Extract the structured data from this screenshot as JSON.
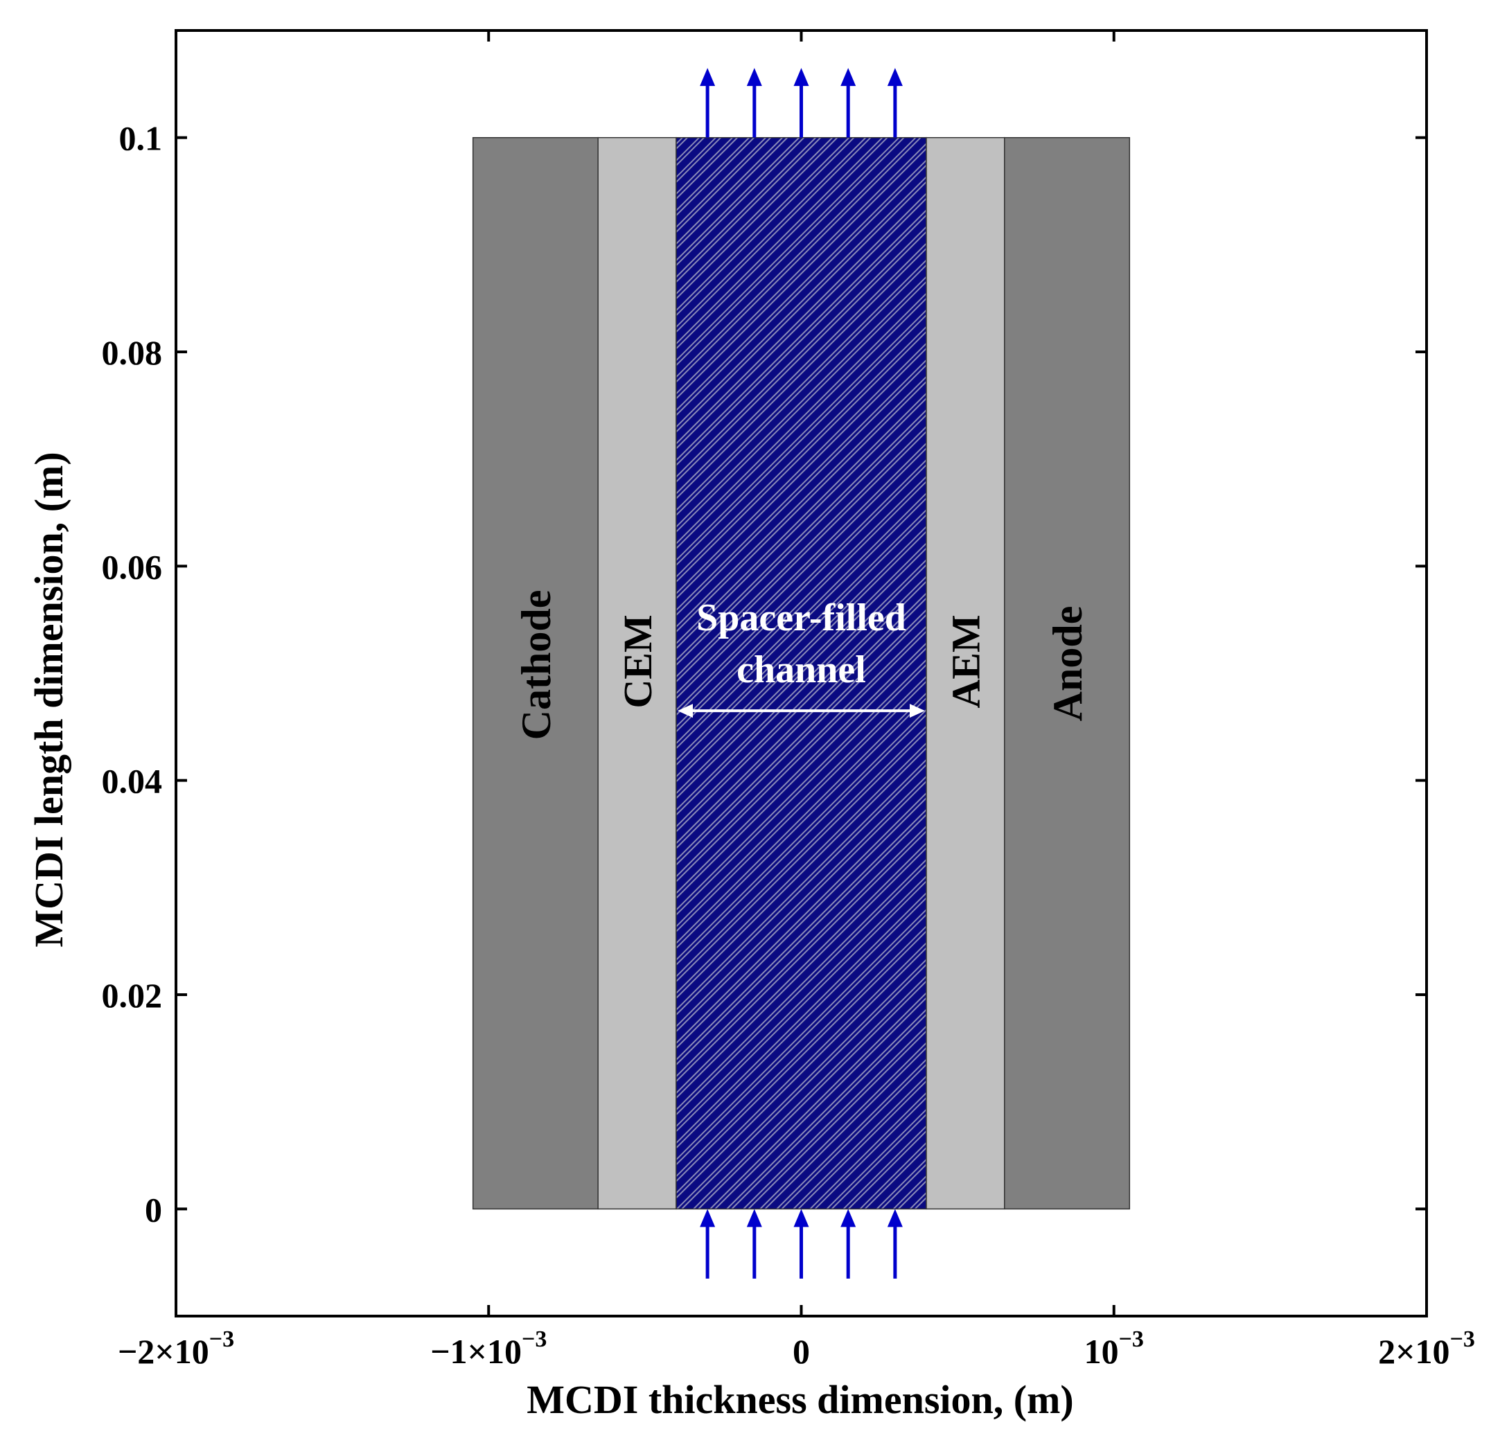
{
  "diagram": {
    "xlabel": "MCDI thickness dimension, (m)",
    "ylabel": "MCDI length dimension, (m)",
    "x_ticks": [
      {
        "value": -0.002,
        "base": "−2×10",
        "exp": "−3"
      },
      {
        "value": -0.001,
        "base": "−1×10",
        "exp": "−3"
      },
      {
        "value": 0,
        "base": "0",
        "exp": ""
      },
      {
        "value": 0.001,
        "base": "10",
        "exp": "−3"
      },
      {
        "value": 0.002,
        "base": "2×10",
        "exp": "−3"
      }
    ],
    "y_ticks": [
      {
        "value": 0,
        "label": "0"
      },
      {
        "value": 0.02,
        "label": "0.02"
      },
      {
        "value": 0.04,
        "label": "0.04"
      },
      {
        "value": 0.06,
        "label": "0.06"
      },
      {
        "value": 0.08,
        "label": "0.08"
      },
      {
        "value": 0.1,
        "label": "0.1"
      }
    ],
    "xlim": [
      -0.002,
      0.002
    ],
    "ylim": [
      -0.01,
      0.11
    ],
    "regions": [
      {
        "id": "cathode",
        "label": "Cathode",
        "x0": -0.00105,
        "x1": -0.00065,
        "color": "#808080"
      },
      {
        "id": "cem",
        "label": "CEM",
        "x0": -0.00065,
        "x1": -0.0004,
        "color": "#c0c0c0"
      },
      {
        "id": "channel",
        "label_line1": "Spacer-filled",
        "label_line2": "channel",
        "x0": -0.0004,
        "x1": 0.0004,
        "color": "#0a0a82",
        "hatch_color": "#8a8ab8"
      },
      {
        "id": "aem",
        "label": "AEM",
        "x0": 0.0004,
        "x1": 0.00065,
        "color": "#c0c0c0"
      },
      {
        "id": "anode",
        "label": "Anode",
        "x0": 0.00065,
        "x1": 0.00105,
        "color": "#808080"
      }
    ],
    "region_y": [
      0,
      0.1
    ],
    "flow_arrows": {
      "x_values": [
        -0.0003,
        -0.00015,
        0,
        0.00015,
        0.0003
      ],
      "inlet_y": [
        -0.0065,
        0
      ],
      "outlet_y": [
        0.1,
        0.1065
      ],
      "color": "#0000cc"
    },
    "width_arrow": {
      "x0": -0.0004,
      "x1": 0.0004,
      "y": 0.0465,
      "color": "#ffffff"
    }
  }
}
